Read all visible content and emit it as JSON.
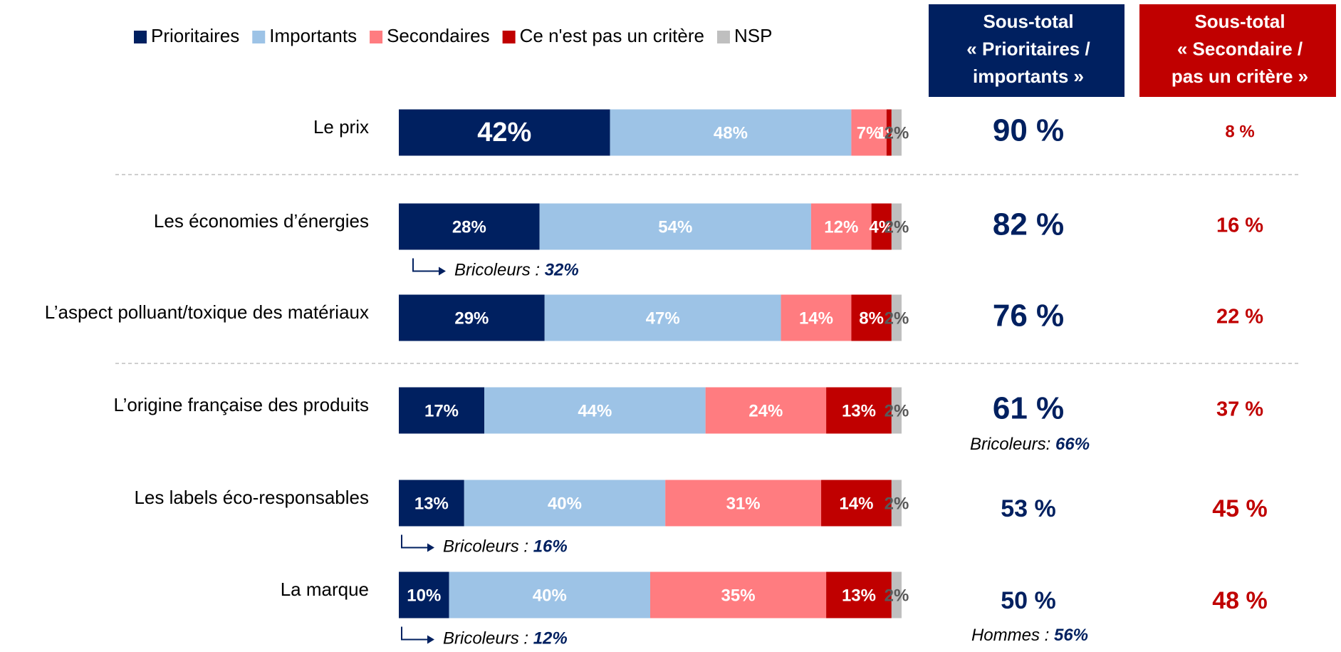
{
  "chart_data": {
    "type": "bar",
    "orientation": "horizontal",
    "stacked": true,
    "legend": "top",
    "xlim": [
      0,
      100
    ],
    "categories": [
      "Le prix",
      "Les économies d’énergies",
      "L’aspect polluant/toxique des matériaux",
      "L’origine française des produits",
      "Les labels éco-responsables",
      "La marque"
    ],
    "series": [
      {
        "name": "Prioritaires",
        "color": "#002060",
        "values": [
          42,
          28,
          29,
          17,
          13,
          10
        ],
        "value_labels": [
          "42%",
          "28%",
          "29%",
          "17%",
          "13%",
          "10%"
        ]
      },
      {
        "name": "Importants",
        "color": "#9DC3E6",
        "values": [
          48,
          54,
          47,
          44,
          40,
          40
        ],
        "value_labels": [
          "48%",
          "54%",
          "47%",
          "44%",
          "40%",
          "40%"
        ]
      },
      {
        "name": "Secondaires",
        "color": "#FF7C80",
        "values": [
          7,
          12,
          14,
          24,
          31,
          35
        ],
        "value_labels": [
          "7%",
          "12%",
          "14%",
          "24%",
          "31%",
          "35%"
        ]
      },
      {
        "name": "Ce n'est pas un critère",
        "color": "#C00000",
        "values": [
          1,
          4,
          8,
          13,
          14,
          13
        ],
        "value_labels": [
          "1%",
          "4%",
          "8%",
          "13%",
          "14%",
          "13%"
        ]
      },
      {
        "name": "NSP",
        "color": "#BFBFBF",
        "values": [
          2,
          2,
          2,
          2,
          2,
          2
        ],
        "value_labels": [
          "2%",
          "2%",
          "2%",
          "2%",
          "2%",
          "2%"
        ]
      }
    ],
    "bar_notes": [
      null,
      {
        "label": "Bricoleurs : ",
        "value": "32%"
      },
      null,
      null,
      {
        "label": "Bricoleurs : ",
        "value": "16%"
      },
      {
        "label": "Bricoleurs : ",
        "value": "12%"
      }
    ],
    "subtotals": [
      {
        "header": [
          "Sous-total",
          "« Prioritaires /",
          "importants »"
        ],
        "color": "#002060",
        "values": [
          90,
          82,
          76,
          61,
          53,
          50
        ],
        "value_labels": [
          "90 %",
          "82 %",
          "76 %",
          "61 %",
          "53 %",
          "50 %"
        ],
        "notes": [
          null,
          null,
          null,
          {
            "label": "Bricoleurs: ",
            "value": "66%"
          },
          null,
          {
            "label": "Hommes : ",
            "value": "56%"
          }
        ]
      },
      {
        "header": [
          "Sous-total",
          "« Secondaire /",
          "pas un critère »"
        ],
        "color": "#C00000",
        "values": [
          8,
          16,
          22,
          37,
          45,
          48
        ],
        "value_labels": [
          "8 %",
          "16 %",
          "22 %",
          "37 %",
          "45 %",
          "48 %"
        ],
        "notes": [
          null,
          null,
          null,
          null,
          null,
          null
        ]
      }
    ]
  }
}
